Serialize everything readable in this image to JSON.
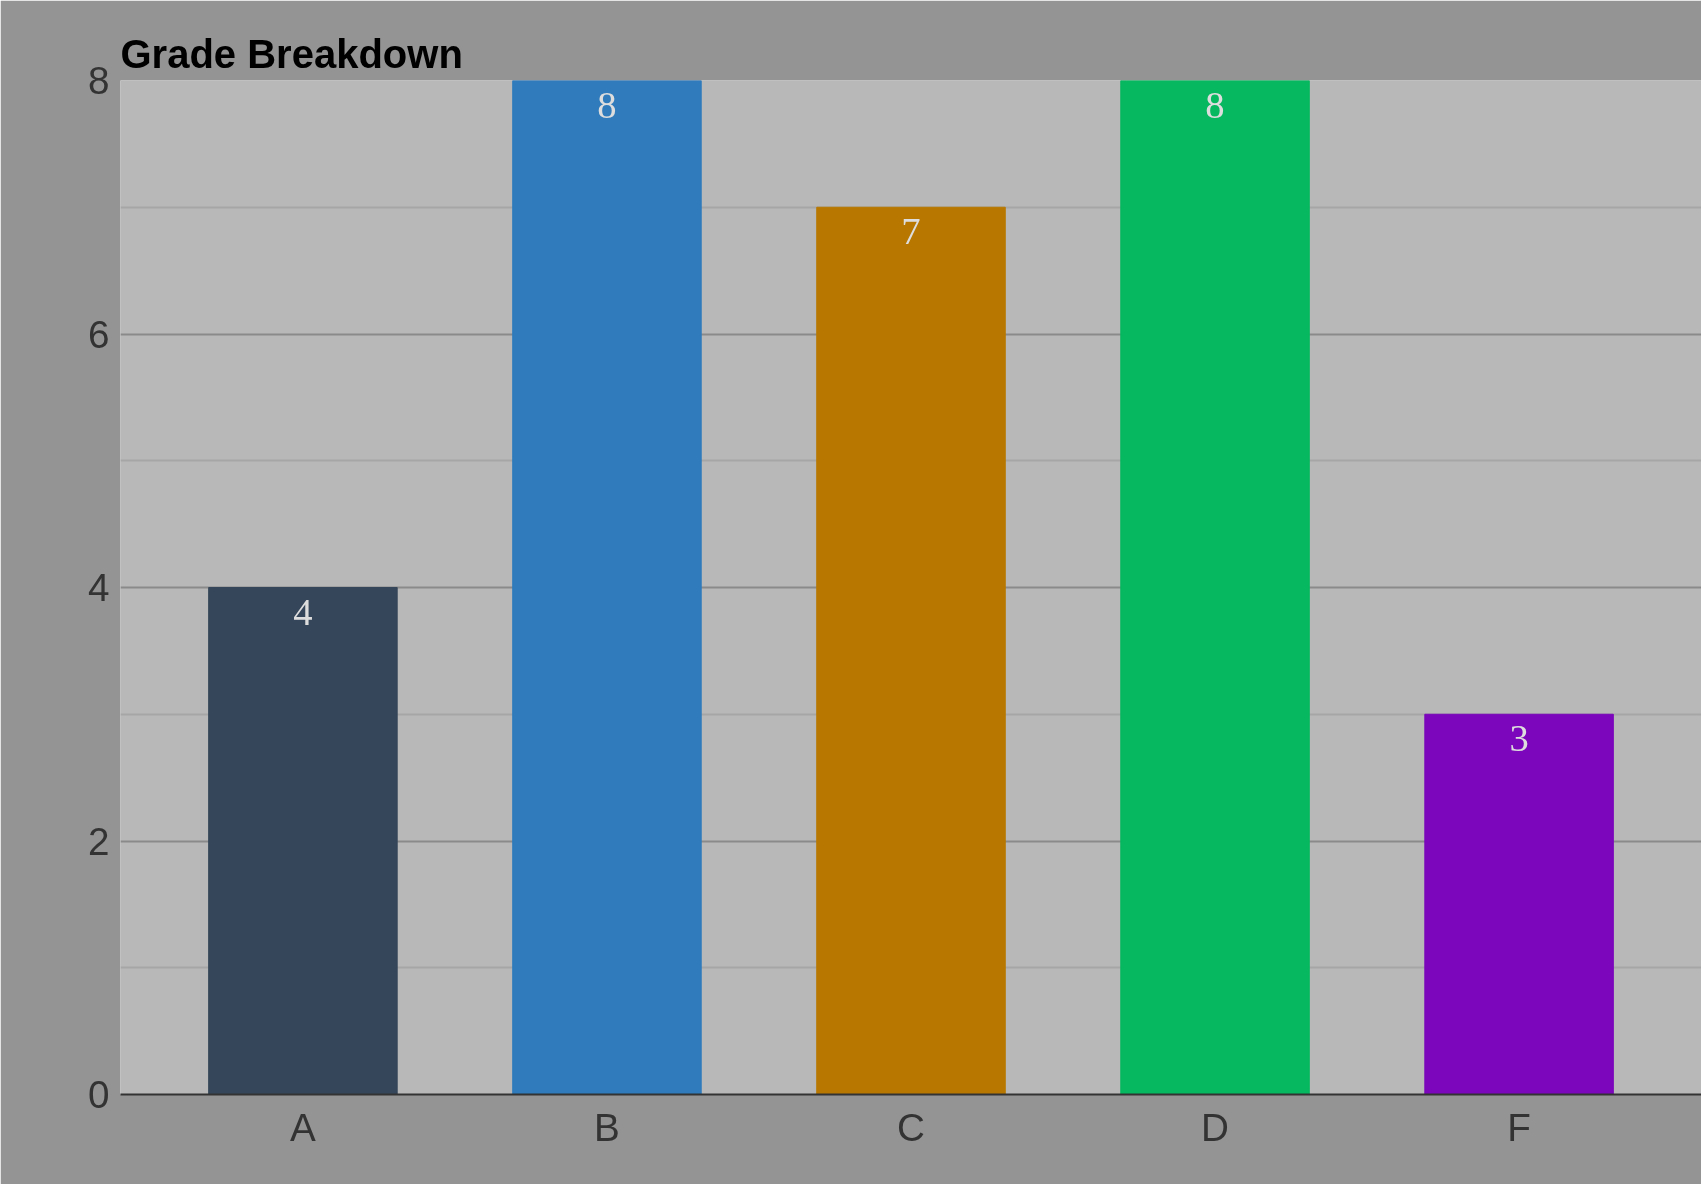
{
  "chart_data": {
    "type": "bar",
    "title": "Grade Breakdown",
    "categories": [
      "A",
      "B",
      "C",
      "D",
      "F"
    ],
    "values": [
      4,
      8,
      7,
      8,
      3
    ],
    "colors": [
      "#36465a",
      "#2f7bbb",
      "#b87800",
      "#06b85f",
      "#7b06bb"
    ],
    "ylim": [
      0,
      8
    ],
    "yticks": [
      0,
      2,
      4,
      6,
      8
    ],
    "grid": "y",
    "data_labels": true
  }
}
